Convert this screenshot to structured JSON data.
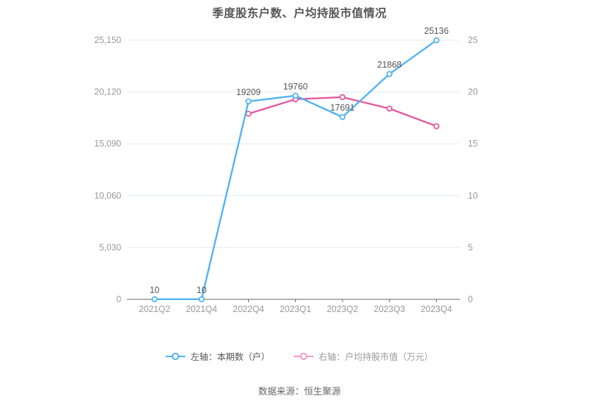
{
  "title": "季度股东户数、户均持股市值情况",
  "footer": "数据来源：恒生聚源",
  "legend": {
    "left": {
      "label": "左轴：本期数（户）",
      "marker_color": "#4FB3F2",
      "text_color": "#555555"
    },
    "right": {
      "label": "右轴：户均持股市值（万元）",
      "marker_color": "#F29AC6",
      "text_color": "#999999"
    }
  },
  "colors": {
    "blue_series": "#4FB3F2",
    "pink_series": "#E4579E",
    "gridline": "#E4E9F2",
    "axis_line": "#666666",
    "tick_label": "#999999",
    "data_label": "#555555"
  },
  "chart_data": {
    "type": "line",
    "title": "季度股东户数、户均持股市值情况",
    "categories": [
      "2021Q2",
      "2021Q4",
      "2022Q4",
      "2023Q1",
      "2023Q2",
      "2023Q3",
      "2023Q4"
    ],
    "series": [
      {
        "name": "左轴：本期数（户）",
        "axis": "left",
        "color": "#4FB3F2",
        "values": [
          10,
          10,
          19209,
          19760,
          17691,
          21868,
          25136
        ],
        "labels": [
          "10",
          "10",
          "19209",
          "19760",
          "17691",
          "21868",
          "25136"
        ]
      },
      {
        "name": "右轴：户均持股市值（万元）",
        "axis": "right",
        "color": "#E4579E",
        "values": [
          null,
          null,
          17.9,
          19.3,
          19.5,
          18.4,
          16.7
        ],
        "labels": []
      }
    ],
    "left_axis": {
      "max": 25150,
      "ticks": [
        0,
        5030,
        10060,
        15090,
        20120,
        25150
      ],
      "tick_labels": [
        "0",
        "5,030",
        "10,060",
        "15,090",
        "20,120",
        "25,150"
      ]
    },
    "right_axis": {
      "max": 25,
      "ticks": [
        0,
        5,
        10,
        15,
        20,
        25
      ],
      "tick_labels": [
        "0",
        "5",
        "10",
        "15",
        "20",
        "25"
      ]
    },
    "grid": true,
    "legend_position": "bottom"
  }
}
